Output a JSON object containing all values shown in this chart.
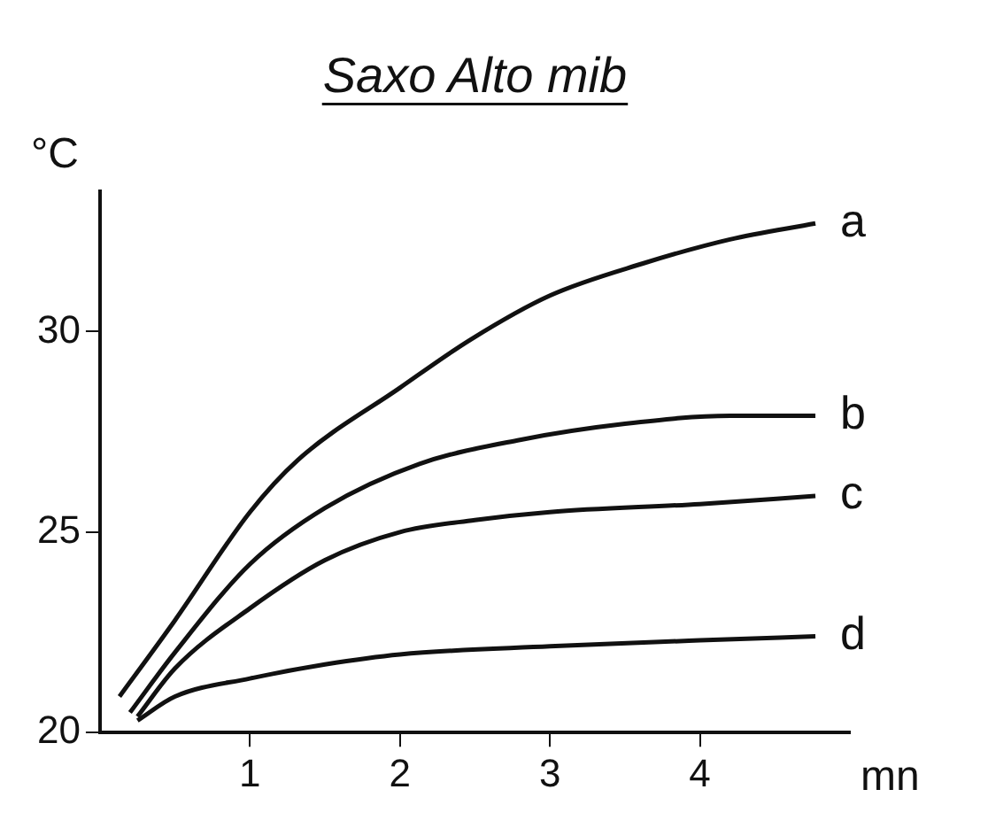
{
  "chart_data": {
    "type": "line",
    "title": "Saxo Alto mib",
    "xlabel": "mn",
    "ylabel": "°C",
    "xlim": [
      0,
      5
    ],
    "ylim": [
      20,
      33.5
    ],
    "xticks": [
      1,
      2,
      3,
      4
    ],
    "yticks": [
      20,
      25,
      30
    ],
    "grid": false,
    "legend": false,
    "marker": "none",
    "line_style": "solid",
    "series": [
      {
        "name": "a",
        "color": "#111111",
        "x": [
          0.13,
          0.5,
          1,
          1.32,
          2,
          2.47,
          3,
          3.62,
          4.2,
          4.77
        ],
        "values": [
          20.9,
          22.8,
          25.5,
          26.8,
          28.6,
          29.8,
          30.9,
          31.7,
          32.3,
          32.7
        ]
      },
      {
        "name": "b",
        "color": "#111111",
        "x": [
          0.2,
          0.5,
          1,
          1.5,
          2.13,
          2.8,
          3.5,
          4.2,
          4.77
        ],
        "values": [
          20.5,
          22.0,
          24.2,
          25.6,
          26.7,
          27.3,
          27.7,
          27.9,
          27.9
        ]
      },
      {
        "name": "c",
        "color": "#111111",
        "x": [
          0.25,
          0.5,
          1,
          1.5,
          2,
          2.5,
          3,
          4,
          4.77
        ],
        "values": [
          20.4,
          21.6,
          23.1,
          24.3,
          25.0,
          25.3,
          25.5,
          25.7,
          25.9
        ]
      },
      {
        "name": "d",
        "color": "#111111",
        "x": [
          0.25,
          0.5,
          1,
          1.5,
          2,
          3,
          4,
          4.77
        ],
        "values": [
          20.3,
          20.9,
          21.35,
          21.7,
          21.95,
          22.15,
          22.3,
          22.4
        ]
      }
    ]
  }
}
